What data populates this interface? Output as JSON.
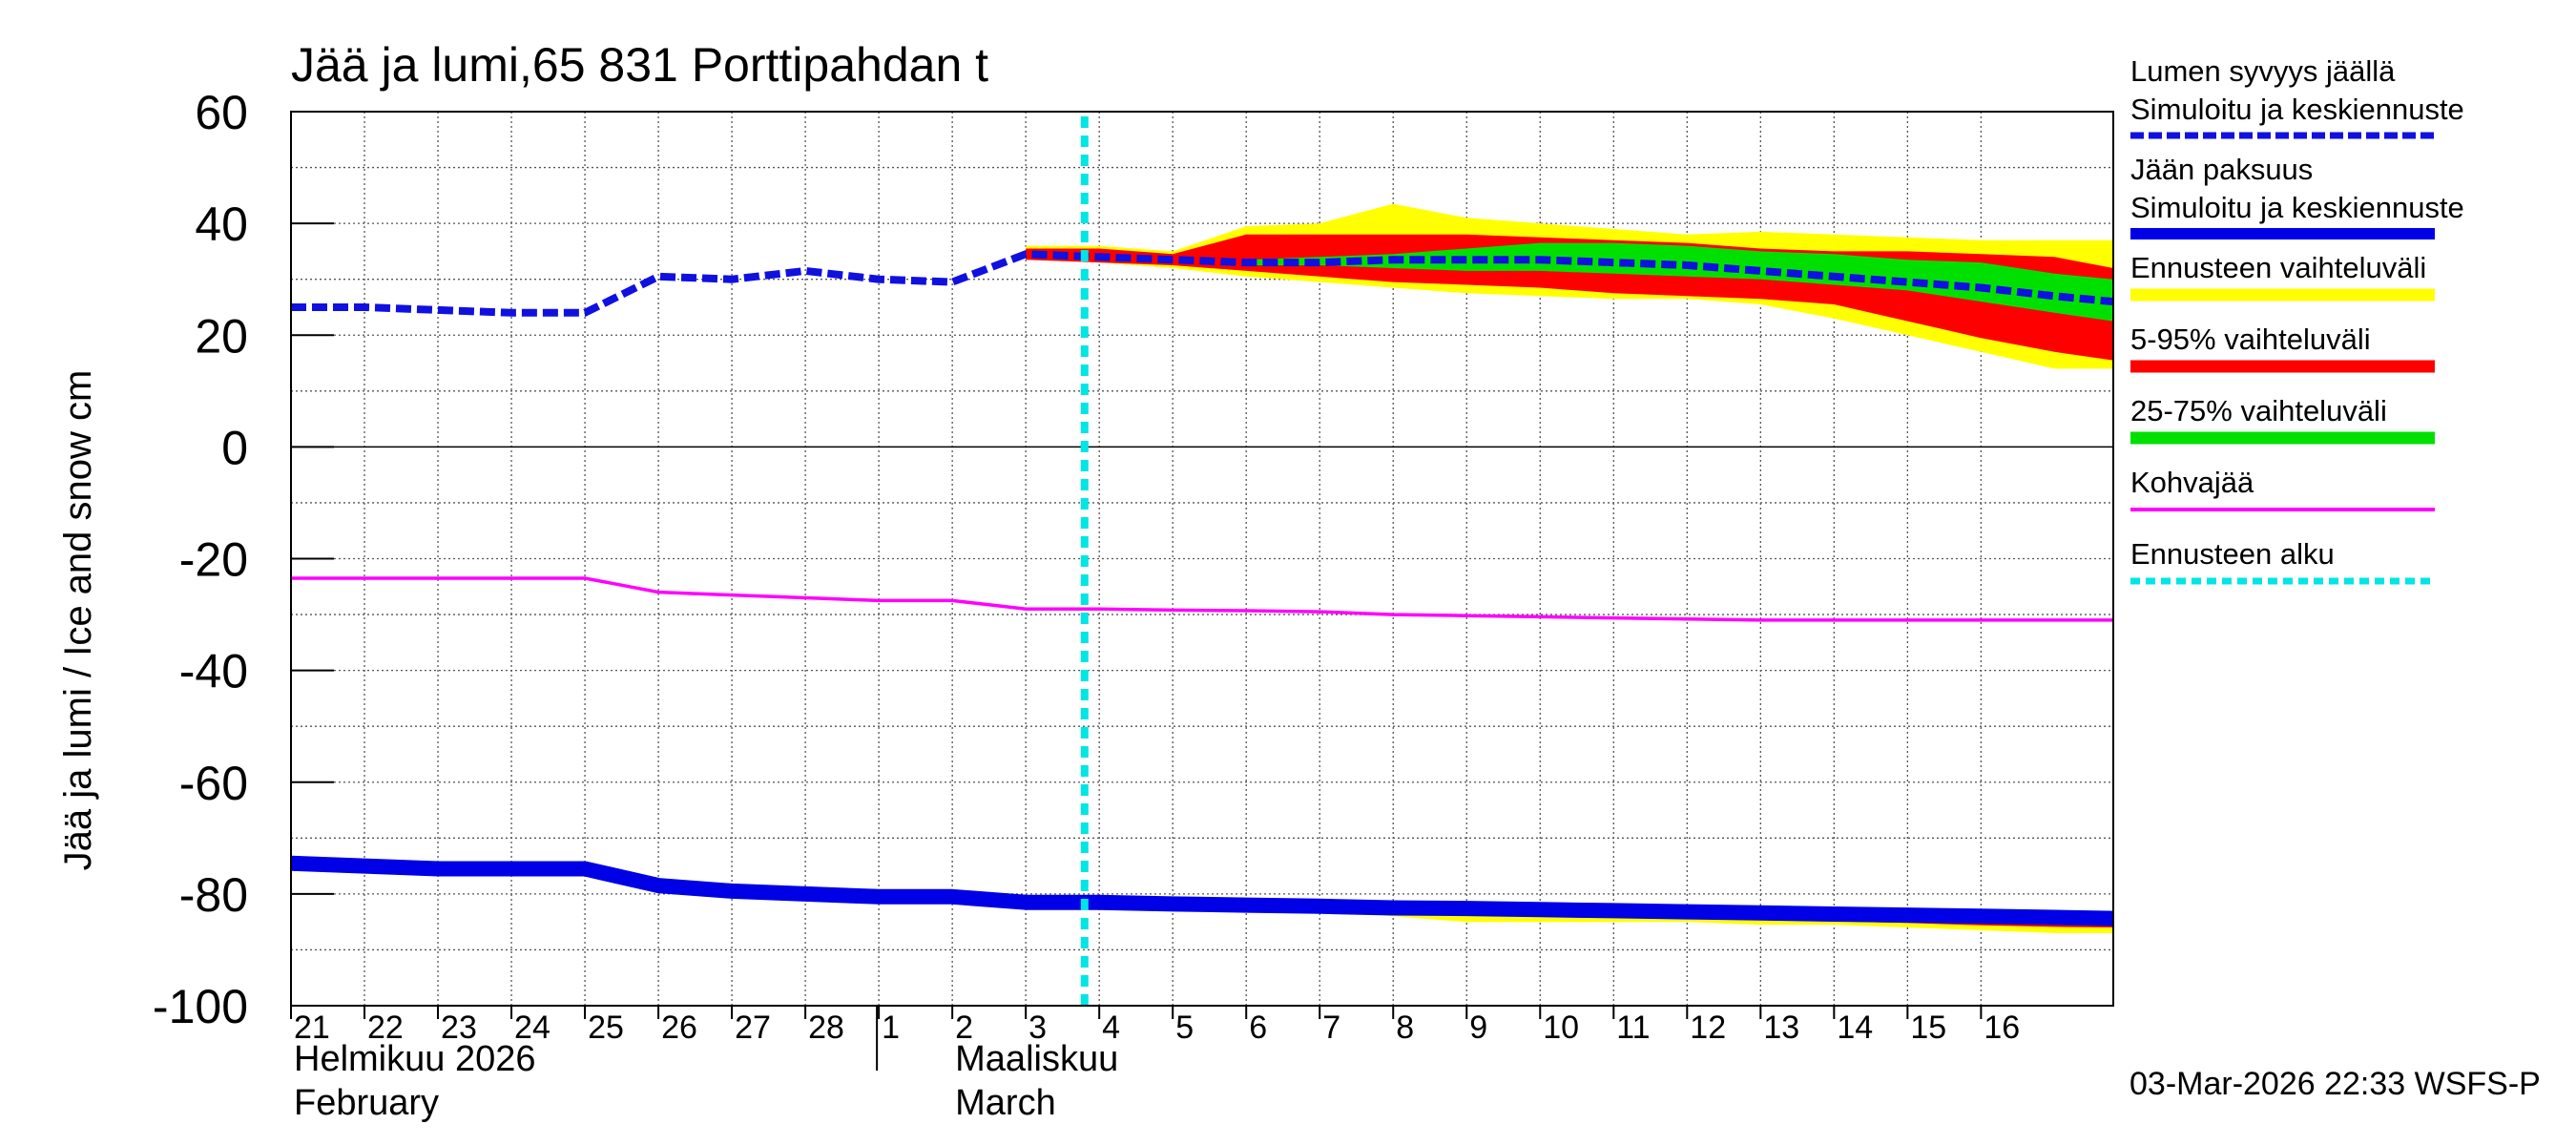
{
  "chart_data": {
    "type": "line",
    "title": "Jää ja lumi,65 831 Porttipahdan t",
    "ylabel": "Jää ja lumi / Ice and snow    cm",
    "ylim": [
      -100,
      60
    ],
    "yticks": [
      60,
      40,
      20,
      0,
      -20,
      -40,
      -60,
      -80,
      -100
    ],
    "x_range": [
      0,
      24.8
    ],
    "x_day_labels": [
      "21",
      "22",
      "23",
      "24",
      "25",
      "26",
      "27",
      "28",
      "1",
      "2",
      "3",
      "4",
      "5",
      "6",
      "7",
      "8",
      "9",
      "10",
      "11",
      "12",
      "13",
      "14",
      "15",
      "16"
    ],
    "month_labels": [
      {
        "fi": "Helmikuu  2026",
        "en": "February",
        "day_index": 0
      },
      {
        "fi": "Maaliskuu",
        "en": "March",
        "day_index": 9
      }
    ],
    "month_divider_index": 8,
    "forecast_start": 10.8,
    "timestamp": "03-Mar-2026 22:33 WSFS-P",
    "colors": {
      "snow": "#1010e0",
      "ice": "#0000e6",
      "range_full": "#ffff00",
      "range_5_95": "#ff0000",
      "range_25_75": "#00e000",
      "slush": "#ff00ff",
      "forecast_start": "#00e5e5"
    },
    "series": {
      "snow_depth": {
        "x": [
          0,
          1,
          2,
          3,
          4,
          5,
          6,
          7,
          8,
          9,
          10,
          11,
          12,
          13,
          14,
          15,
          16,
          17,
          18,
          19,
          20,
          21,
          22,
          23,
          24,
          24.8
        ],
        "y": [
          25,
          25,
          24.5,
          24,
          24,
          30.5,
          30,
          31.5,
          30,
          29.5,
          34.5,
          34,
          33.5,
          33,
          33,
          33.5,
          33.5,
          33.5,
          33,
          32.5,
          31.5,
          30.5,
          29.5,
          28.5,
          27,
          26
        ]
      },
      "ice_thickness": {
        "x": [
          0,
          1,
          2,
          3,
          4,
          5,
          6,
          7,
          8,
          9,
          10,
          11,
          12,
          13,
          14,
          15,
          16,
          17,
          18,
          19,
          20,
          21,
          22,
          23,
          24,
          24.8
        ],
        "y": [
          -74.5,
          -75,
          -75.5,
          -75.5,
          -75.5,
          -78.5,
          -79.5,
          -80,
          -80.5,
          -80.5,
          -81.5,
          -81.5,
          -81.8,
          -82,
          -82.2,
          -82.5,
          -82.6,
          -82.8,
          -83,
          -83.2,
          -83.4,
          -83.6,
          -83.8,
          -84,
          -84.2,
          -84.4
        ]
      },
      "slush_ice": {
        "x": [
          0,
          1,
          2,
          3,
          4,
          5,
          6,
          7,
          8,
          9,
          10,
          11,
          12,
          13,
          14,
          15,
          16,
          17,
          18,
          19,
          20,
          21,
          22,
          23,
          24,
          24.8
        ],
        "y": [
          -23.5,
          -23.5,
          -23.5,
          -23.5,
          -23.5,
          -26,
          -26.5,
          -27,
          -27.5,
          -27.5,
          -29,
          -29,
          -29.2,
          -29.3,
          -29.5,
          -30,
          -30.2,
          -30.4,
          -30.6,
          -30.8,
          -31,
          -31,
          -31,
          -31,
          -31,
          -31
        ]
      },
      "snow_range_full": {
        "x": [
          10,
          11,
          12,
          13,
          14,
          15,
          16,
          17,
          18,
          19,
          20,
          21,
          22,
          23,
          24,
          24.8
        ],
        "upper": [
          36,
          36,
          35,
          39.5,
          40,
          43.5,
          41,
          40,
          39,
          38,
          38.5,
          38,
          37.5,
          37,
          37,
          37
        ],
        "lower": [
          33.5,
          33,
          32,
          30.5,
          29.5,
          28.5,
          27.5,
          27,
          26.5,
          26.5,
          25.5,
          23,
          20,
          17,
          14,
          14
        ]
      },
      "snow_range_5_95": {
        "x": [
          10,
          11,
          12,
          13,
          14,
          15,
          16,
          17,
          18,
          19,
          20,
          21,
          22,
          23,
          24,
          24.8
        ],
        "upper": [
          35.5,
          35.5,
          34.5,
          38,
          38,
          38,
          38,
          37.5,
          37,
          36.5,
          35.5,
          35,
          35,
          34.5,
          34,
          32
        ],
        "lower": [
          33.5,
          33,
          32.5,
          31.5,
          30.5,
          29.5,
          29,
          28.5,
          27.5,
          27,
          26.5,
          25.5,
          22.5,
          19.5,
          17,
          15.5
        ]
      },
      "snow_range_25_75": {
        "x": [
          13,
          14,
          15,
          16,
          17,
          18,
          19,
          20,
          21,
          22,
          23,
          24,
          24.8
        ],
        "upper": [
          33.5,
          34,
          34.5,
          35.5,
          36.5,
          36.5,
          36,
          35,
          34.5,
          33.5,
          33,
          31,
          30
        ],
        "lower": [
          32.5,
          32.5,
          32,
          31.5,
          31.5,
          31,
          30.5,
          30,
          29,
          28,
          26,
          24,
          22.5
        ]
      },
      "ice_range_full": {
        "x": [
          10,
          11,
          12,
          13,
          14,
          15,
          16,
          17,
          18,
          19,
          20,
          21,
          22,
          23,
          24,
          24.8
        ],
        "upper": [
          -81.5,
          -81.5,
          -81.5,
          -81.7,
          -81.8,
          -82,
          -82.2,
          -82.3,
          -82.5,
          -82.7,
          -82.8,
          -83,
          -83.2,
          -83.3,
          -83.5,
          -83.6
        ],
        "lower": [
          -81.5,
          -81.5,
          -82,
          -82.5,
          -83,
          -84,
          -85,
          -85,
          -85,
          -85,
          -85.5,
          -85.5,
          -86,
          -86.5,
          -87,
          -87
        ]
      },
      "ice_range_5_95": {
        "x": [
          10,
          11,
          12,
          13,
          14,
          15,
          16,
          17,
          18,
          19,
          20,
          21,
          22,
          23,
          24,
          24.8
        ],
        "upper": [
          -81.5,
          -81.5,
          -81.5,
          -81.7,
          -81.8,
          -82,
          -82.2,
          -82.3,
          -82.5,
          -82.7,
          -82.8,
          -83,
          -83.2,
          -83.3,
          -83.5,
          -83.6
        ],
        "lower": [
          -81.5,
          -81.5,
          -82,
          -82.3,
          -82.7,
          -83.2,
          -83.6,
          -83.8,
          -84,
          -84.3,
          -84.6,
          -84.9,
          -85.2,
          -85.6,
          -85.9,
          -86
        ]
      }
    },
    "legend": [
      {
        "key": "snow",
        "line1": "Lumen syvyys jäällä",
        "line2": "Simuloitu ja keskiennuste",
        "style": "dashed",
        "color": "#1010e0"
      },
      {
        "key": "ice",
        "line1": "Jään paksuus",
        "line2": "Simuloitu ja keskiennuste",
        "style": "thick",
        "color": "#0000e6"
      },
      {
        "key": "range_full",
        "line1": "Ennusteen vaihteluväli",
        "line2": "",
        "style": "band",
        "color": "#ffff00"
      },
      {
        "key": "range_5_95",
        "line1": "5-95% vaihteluväli",
        "line2": "",
        "style": "band",
        "color": "#ff0000"
      },
      {
        "key": "range_25_75",
        "line1": "25-75% vaihteluväli",
        "line2": "",
        "style": "band",
        "color": "#00e000"
      },
      {
        "key": "slush",
        "line1": "Kohvajää",
        "line2": "",
        "style": "thin",
        "color": "#ff00ff"
      },
      {
        "key": "forecast_start",
        "line1": "Ennusteen alku",
        "line2": "",
        "style": "dotted",
        "color": "#00e5e5"
      }
    ]
  }
}
